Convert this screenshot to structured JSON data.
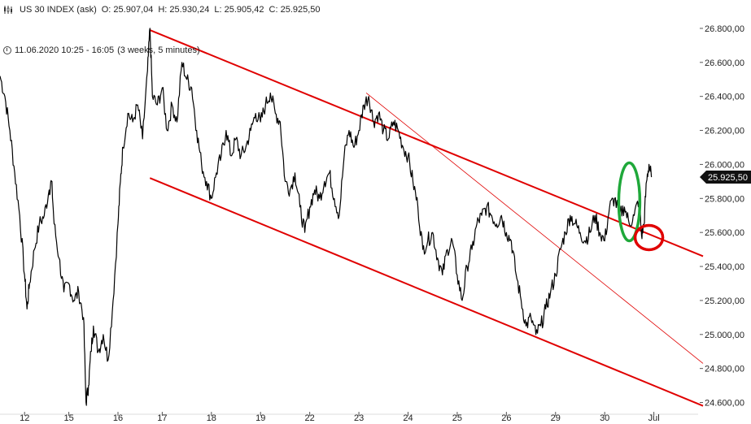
{
  "header": {
    "instrument": "US 30 INDEX (ask)",
    "open": "O: 25.907,04",
    "high": "H: 25.930,24",
    "low": "L: 25.905,42",
    "close": "C: 25.925,50",
    "range": "11.06.2020 10:25 - 16:05",
    "period": "(3 weeks, 5 minutes)"
  },
  "icons": {
    "chart_type": "candles-icon",
    "time": "clock-icon"
  },
  "colors": {
    "price": "#000000",
    "channel": "#e00000",
    "green_marker": "#1fa83a",
    "red_marker": "#e00000",
    "last_badge": "#111111"
  },
  "chart_data": {
    "type": "line",
    "title": "US 30 INDEX (ask)",
    "ylim": [
      24550,
      26900
    ],
    "yticks": [
      "24.600,00",
      "24.800,00",
      "25.000,00",
      "25.200,00",
      "25.400,00",
      "25.600,00",
      "25.800,00",
      "26.000,00",
      "26.200,00",
      "26.400,00",
      "26.600,00",
      "26.800,00"
    ],
    "ytick_values": [
      24600,
      24800,
      25000,
      25200,
      25400,
      25600,
      25800,
      26000,
      26200,
      26400,
      26600,
      26800
    ],
    "xticks": [
      "12",
      "15",
      "16",
      "17",
      "18",
      "19",
      "22",
      "23",
      "24",
      "25",
      "26",
      "29",
      "30",
      "Jul"
    ],
    "xtick_index": [
      0.5,
      1.4,
      2.4,
      3.3,
      4.3,
      5.3,
      6.3,
      7.3,
      8.3,
      9.3,
      10.3,
      11.3,
      12.3,
      13.3
    ],
    "last_price": "25.925,50",
    "last_value": 25925.5,
    "series": [
      {
        "values": [
          [
            0.0,
            26520
          ],
          [
            0.1,
            26400
          ],
          [
            0.2,
            26200
          ],
          [
            0.3,
            25950
          ],
          [
            0.4,
            25700
          ],
          [
            0.5,
            25350
          ],
          [
            0.55,
            25150
          ],
          [
            0.6,
            25300
          ],
          [
            0.7,
            25500
          ],
          [
            0.8,
            25650
          ],
          [
            0.9,
            25700
          ],
          [
            1.0,
            25850
          ],
          [
            1.05,
            25900
          ],
          [
            1.1,
            25650
          ],
          [
            1.2,
            25450
          ],
          [
            1.3,
            25250
          ],
          [
            1.4,
            25300
          ],
          [
            1.5,
            25200
          ],
          [
            1.6,
            25250
          ],
          [
            1.7,
            25100
          ],
          [
            1.75,
            24600
          ],
          [
            1.8,
            24700
          ],
          [
            1.85,
            24900
          ],
          [
            1.9,
            25050
          ],
          [
            2.0,
            24900
          ],
          [
            2.1,
            25000
          ],
          [
            2.2,
            24850
          ],
          [
            2.3,
            25200
          ],
          [
            2.4,
            25650
          ],
          [
            2.45,
            25900
          ],
          [
            2.5,
            26100
          ],
          [
            2.6,
            26300
          ],
          [
            2.7,
            26250
          ],
          [
            2.8,
            26350
          ],
          [
            2.9,
            26150
          ],
          [
            3.0,
            26550
          ],
          [
            3.05,
            26800
          ],
          [
            3.1,
            26400
          ],
          [
            3.2,
            26350
          ],
          [
            3.3,
            26450
          ],
          [
            3.4,
            26200
          ],
          [
            3.5,
            26350
          ],
          [
            3.6,
            26250
          ],
          [
            3.7,
            26600
          ],
          [
            3.8,
            26500
          ],
          [
            3.9,
            26450
          ],
          [
            4.0,
            26200
          ],
          [
            4.1,
            26000
          ],
          [
            4.2,
            25900
          ],
          [
            4.3,
            25800
          ],
          [
            4.4,
            25950
          ],
          [
            4.5,
            26050
          ],
          [
            4.6,
            26200
          ],
          [
            4.7,
            26050
          ],
          [
            4.8,
            26150
          ],
          [
            4.9,
            26050
          ],
          [
            5.0,
            26100
          ],
          [
            5.1,
            26200
          ],
          [
            5.2,
            26300
          ],
          [
            5.3,
            26250
          ],
          [
            5.4,
            26350
          ],
          [
            5.5,
            26420
          ],
          [
            5.6,
            26300
          ],
          [
            5.7,
            26250
          ],
          [
            5.8,
            25900
          ],
          [
            5.9,
            25850
          ],
          [
            6.0,
            25950
          ],
          [
            6.1,
            25750
          ],
          [
            6.2,
            25600
          ],
          [
            6.3,
            25750
          ],
          [
            6.4,
            25850
          ],
          [
            6.5,
            25800
          ],
          [
            6.6,
            25900
          ],
          [
            6.7,
            25950
          ],
          [
            6.8,
            25800
          ],
          [
            6.9,
            25700
          ],
          [
            7.0,
            26050
          ],
          [
            7.1,
            26200
          ],
          [
            7.2,
            26100
          ],
          [
            7.3,
            26200
          ],
          [
            7.4,
            26350
          ],
          [
            7.5,
            26400
          ],
          [
            7.6,
            26250
          ],
          [
            7.7,
            26300
          ],
          [
            7.8,
            26200
          ],
          [
            7.9,
            26150
          ],
          [
            8.0,
            26250
          ],
          [
            8.1,
            26200
          ],
          [
            8.2,
            26100
          ],
          [
            8.3,
            26050
          ],
          [
            8.4,
            25900
          ],
          [
            8.5,
            25750
          ],
          [
            8.6,
            25500
          ],
          [
            8.7,
            25550
          ],
          [
            8.8,
            25600
          ],
          [
            8.9,
            25450
          ],
          [
            9.0,
            25350
          ],
          [
            9.1,
            25500
          ],
          [
            9.2,
            25550
          ],
          [
            9.3,
            25350
          ],
          [
            9.4,
            25200
          ],
          [
            9.5,
            25400
          ],
          [
            9.6,
            25500
          ],
          [
            9.7,
            25650
          ],
          [
            9.8,
            25700
          ],
          [
            9.9,
            25750
          ],
          [
            10.0,
            25700
          ],
          [
            10.1,
            25650
          ],
          [
            10.2,
            25700
          ],
          [
            10.3,
            25600
          ],
          [
            10.4,
            25550
          ],
          [
            10.5,
            25350
          ],
          [
            10.6,
            25200
          ],
          [
            10.7,
            25050
          ],
          [
            10.8,
            25100
          ],
          [
            10.9,
            25000
          ],
          [
            11.0,
            25050
          ],
          [
            11.1,
            25150
          ],
          [
            11.2,
            25250
          ],
          [
            11.3,
            25350
          ],
          [
            11.4,
            25500
          ],
          [
            11.5,
            25600
          ],
          [
            11.6,
            25700
          ],
          [
            11.7,
            25650
          ],
          [
            11.8,
            25600
          ],
          [
            11.9,
            25550
          ],
          [
            12.0,
            25600
          ],
          [
            12.1,
            25700
          ],
          [
            12.2,
            25600
          ],
          [
            12.3,
            25550
          ],
          [
            12.4,
            25750
          ],
          [
            12.5,
            25800
          ],
          [
            12.6,
            25700
          ],
          [
            12.7,
            25750
          ],
          [
            12.8,
            25650
          ],
          [
            12.9,
            25700
          ],
          [
            13.0,
            25800
          ],
          [
            13.05,
            25580
          ],
          [
            13.1,
            25650
          ],
          [
            13.15,
            25900
          ],
          [
            13.2,
            26000
          ],
          [
            13.25,
            25925
          ]
        ]
      }
    ],
    "channel": {
      "upper": [
        [
          3.05,
          26790
        ],
        [
          14.3,
          25460
        ]
      ],
      "lower": [
        [
          3.05,
          25920
        ],
        [
          14.3,
          24580
        ]
      ],
      "thin": [
        [
          7.45,
          26420
        ],
        [
          14.3,
          24830
        ]
      ]
    },
    "markers": [
      {
        "shape": "ellipse",
        "color": "green",
        "at": [
          12.8,
          25780
        ]
      },
      {
        "shape": "ellipse",
        "color": "red",
        "at": [
          13.2,
          25570
        ]
      }
    ]
  }
}
